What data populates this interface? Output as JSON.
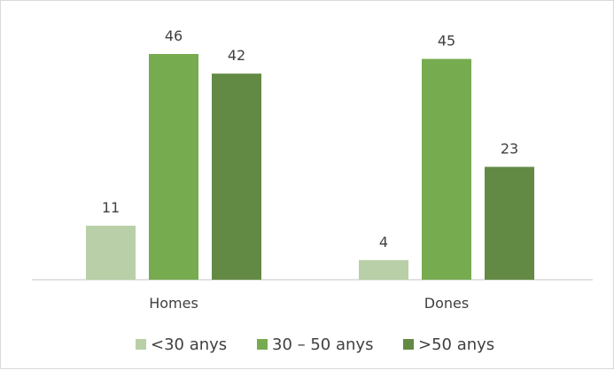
{
  "chart_data": {
    "type": "bar",
    "categories": [
      "Homes",
      "Dones"
    ],
    "series": [
      {
        "name": "<30 anys",
        "values": [
          11,
          4
        ],
        "color": "#b9cfa7"
      },
      {
        "name": "30 – 50 anys",
        "values": [
          46,
          45
        ],
        "color": "#77ab50"
      },
      {
        "name": ">50 anys",
        "values": [
          42,
          23
        ],
        "color": "#638a44"
      }
    ],
    "title": "",
    "xlabel": "",
    "ylabel": "",
    "ylim": [
      0,
      46
    ],
    "grid": false,
    "legend_position": "bottom",
    "axis_color": "#d9d9d9"
  }
}
